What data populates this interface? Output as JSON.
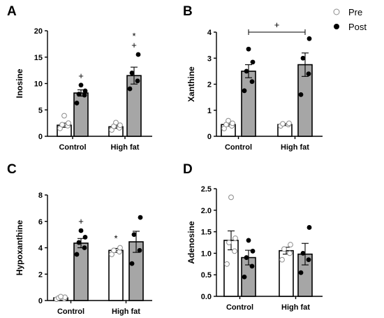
{
  "legend": {
    "pre": {
      "label": "Pre",
      "marker": "open-circle",
      "bar_color": "#ffffff"
    },
    "post": {
      "label": "Post",
      "marker": "filled-circle",
      "bar_color": "#a6a6a6"
    }
  },
  "chart_data": [
    {
      "panel": "A",
      "type": "bar",
      "ylabel": "Inosine",
      "categories": [
        "Control",
        "High fat"
      ],
      "ylim": [
        0,
        20
      ],
      "yticks": [
        0,
        5,
        10,
        15,
        20
      ],
      "series": [
        {
          "group": "pre",
          "values": [
            2.1,
            1.8
          ],
          "errors": [
            0.4,
            0.3
          ],
          "points": [
            [
              1.5,
              2.0,
              2.2,
              2.5,
              3.9
            ],
            [
              1.2,
              1.6,
              1.9,
              2.1,
              2.6
            ]
          ]
        },
        {
          "group": "post",
          "values": [
            8.2,
            11.5
          ],
          "errors": [
            0.6,
            1.6
          ],
          "points": [
            [
              6.3,
              7.8,
              8.0,
              8.6,
              9.7
            ],
            [
              9.0,
              10.5,
              12.0,
              15.5
            ]
          ]
        }
      ],
      "annotations": [
        {
          "category": 0,
          "group": "post",
          "text": "+"
        },
        {
          "category": 1,
          "group": "post",
          "text": "+"
        },
        {
          "category": 1,
          "group": "post",
          "text": "*"
        }
      ]
    },
    {
      "panel": "B",
      "type": "bar",
      "ylabel": "Xanthine",
      "categories": [
        "Control",
        "High fat"
      ],
      "ylim": [
        0,
        4
      ],
      "yticks": [
        0,
        1,
        2,
        3,
        4
      ],
      "series": [
        {
          "group": "pre",
          "values": [
            0.45,
            0.45
          ],
          "errors": [
            0.06,
            0.04
          ],
          "points": [
            [
              0.3,
              0.4,
              0.45,
              0.5,
              0.6
            ],
            [
              0.4,
              0.45,
              0.48,
              0.5
            ]
          ]
        },
        {
          "group": "post",
          "values": [
            2.5,
            2.75
          ],
          "errors": [
            0.25,
            0.45
          ],
          "points": [
            [
              1.75,
              2.1,
              2.5,
              2.85,
              3.35
            ],
            [
              1.6,
              2.4,
              3.0,
              3.75
            ]
          ]
        }
      ],
      "bracket": {
        "from_category": 0,
        "to_category": 1,
        "group": "post",
        "y": 4.0,
        "text": "+"
      }
    },
    {
      "panel": "C",
      "type": "bar",
      "ylabel": "Hypoxanthine",
      "categories": [
        "Control",
        "High fat"
      ],
      "ylim": [
        0,
        8
      ],
      "yticks": [
        0,
        2,
        4,
        6,
        8
      ],
      "series": [
        {
          "group": "pre",
          "values": [
            0.2,
            3.8
          ],
          "errors": [
            0.05,
            0.15
          ],
          "points": [
            [
              0.1,
              0.15,
              0.2,
              0.25,
              0.3
            ],
            [
              3.5,
              3.7,
              3.8,
              4.0
            ]
          ]
        },
        {
          "group": "post",
          "values": [
            4.35,
            4.45
          ],
          "errors": [
            0.35,
            0.8
          ],
          "points": [
            [
              3.5,
              4.0,
              4.4,
              4.8,
              5.3
            ],
            [
              2.8,
              3.8,
              5.0,
              6.3
            ]
          ]
        }
      ],
      "annotations": [
        {
          "category": 0,
          "group": "post",
          "text": "+"
        },
        {
          "category": 1,
          "group": "pre",
          "text": "*"
        }
      ]
    },
    {
      "panel": "D",
      "type": "bar",
      "ylabel": "Adenosine",
      "categories": [
        "Control",
        "High fat"
      ],
      "ylim": [
        0,
        2.5
      ],
      "yticks": [
        "0.0",
        "0.5",
        "1.0",
        "1.5",
        "2.0",
        "2.5"
      ],
      "series": [
        {
          "group": "pre",
          "values": [
            1.3,
            1.06
          ],
          "errors": [
            0.22,
            0.08
          ],
          "points": [
            [
              0.75,
              1.05,
              1.25,
              1.35,
              2.3
            ],
            [
              0.85,
              1.0,
              1.1,
              1.2
            ]
          ]
        },
        {
          "group": "post",
          "values": [
            0.9,
            0.98
          ],
          "errors": [
            0.17,
            0.25
          ],
          "points": [
            [
              0.45,
              0.7,
              0.9,
              1.05,
              1.3
            ],
            [
              0.55,
              0.85,
              1.0,
              1.6
            ]
          ]
        }
      ]
    }
  ]
}
